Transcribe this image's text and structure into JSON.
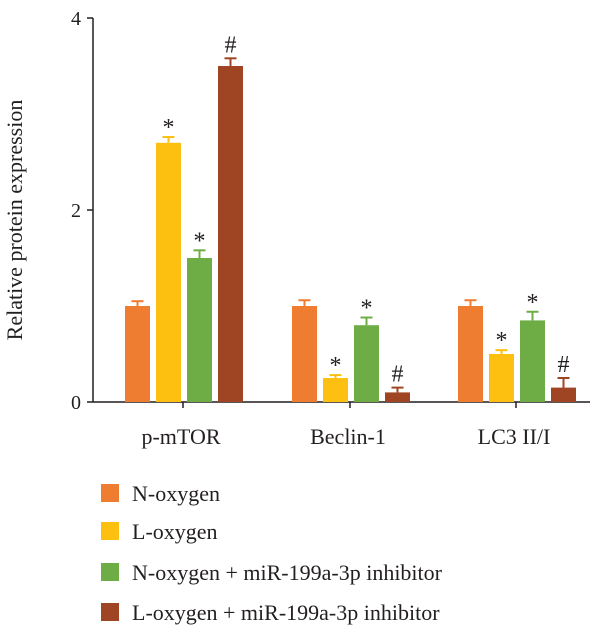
{
  "chart_data": {
    "type": "bar",
    "ylabel": "Relative protein expression",
    "ylim": [
      0,
      4
    ],
    "yticks": [
      "0",
      "2",
      "4"
    ],
    "categories": [
      "p-mTOR",
      "Beclin-1",
      "LC3 II/I"
    ],
    "legend_position": "bottom",
    "series": [
      {
        "name": "N-oxygen",
        "color": "#ee7d31",
        "values": [
          1.0,
          1.0,
          1.0
        ],
        "errors": [
          0.05,
          0.06,
          0.06
        ],
        "annotations": [
          "",
          "",
          ""
        ]
      },
      {
        "name": "L-oxygen",
        "color": "#fdc010",
        "values": [
          2.7,
          0.25,
          0.5
        ],
        "errors": [
          0.06,
          0.03,
          0.04
        ],
        "annotations": [
          "*",
          "*",
          "*"
        ]
      },
      {
        "name": "N-oxygen + miR-199a-3p inhibitor",
        "color": "#6eac46",
        "values": [
          1.5,
          0.8,
          0.85
        ],
        "errors": [
          0.08,
          0.08,
          0.09
        ],
        "annotations": [
          "*",
          "*",
          "*"
        ]
      },
      {
        "name": "L-oxygen + miR-199a-3p inhibitor",
        "color": "#9f4523",
        "values": [
          3.5,
          0.1,
          0.15
        ],
        "errors": [
          0.08,
          0.05,
          0.1
        ],
        "annotations": [
          "#",
          "#",
          "#"
        ]
      }
    ]
  }
}
